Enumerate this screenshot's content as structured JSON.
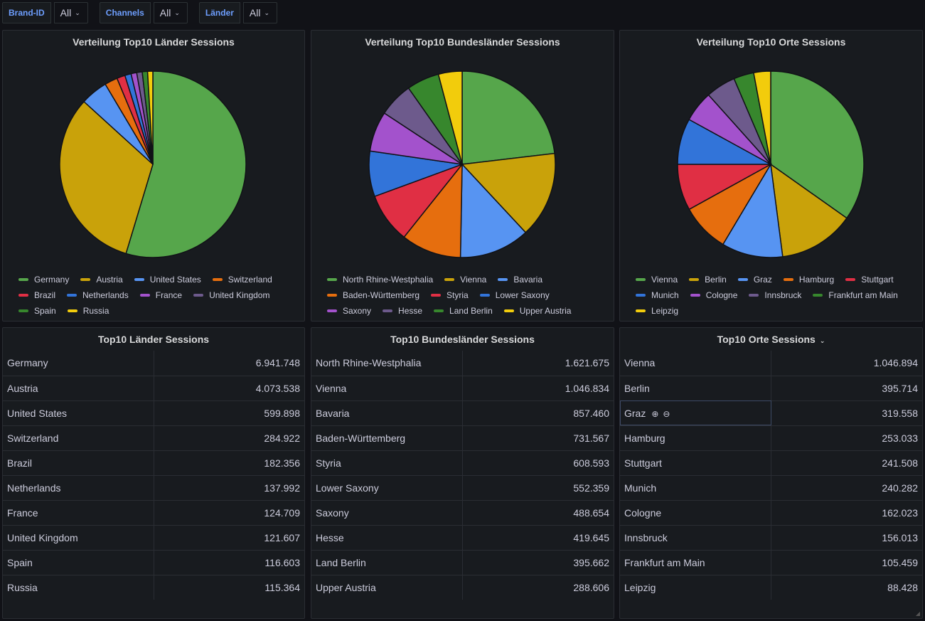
{
  "variables": [
    {
      "label": "Brand-ID",
      "value": "All"
    },
    {
      "label": "Channels",
      "value": "All"
    },
    {
      "label": "Länder",
      "value": "All"
    }
  ],
  "panels": {
    "pie1_title": "Verteilung Top10 Länder Sessions",
    "pie2_title": "Verteilung Top10 Bundesländer Sessions",
    "pie3_title": "Verteilung Top10 Orte Sessions",
    "table1_title": "Top10 Länder Sessions",
    "table2_title": "Top10 Bundesländer Sessions",
    "table3_title": "Top10 Orte Sessions"
  },
  "palette": [
    "#56a64b",
    "#c9a20a",
    "#5794f2",
    "#e66e0e",
    "#e02f44",
    "#3274d9",
    "#a352cc",
    "#6d5a8c",
    "#37872d",
    "#f2cc0c"
  ],
  "chart_data": [
    {
      "type": "pie",
      "title": "Verteilung Top10 Länder Sessions",
      "labels": [
        "Germany",
        "Austria",
        "United States",
        "Switzerland",
        "Brazil",
        "Netherlands",
        "France",
        "United Kingdom",
        "Spain",
        "Russia"
      ],
      "values": [
        6941748,
        4073538,
        599898,
        284922,
        182356,
        137992,
        124709,
        121607,
        116603,
        115364
      ],
      "legend_position": "bottom"
    },
    {
      "type": "pie",
      "title": "Verteilung Top10 Bundesländer Sessions",
      "labels": [
        "North Rhine-Westphalia",
        "Vienna",
        "Bavaria",
        "Baden-Württemberg",
        "Styria",
        "Lower Saxony",
        "Saxony",
        "Hesse",
        "Land Berlin",
        "Upper Austria"
      ],
      "values": [
        1621675,
        1046834,
        857460,
        731567,
        608593,
        552359,
        488654,
        419645,
        395662,
        288606
      ],
      "legend_position": "bottom"
    },
    {
      "type": "pie",
      "title": "Verteilung Top10 Orte Sessions",
      "labels": [
        "Vienna",
        "Berlin",
        "Graz",
        "Hamburg",
        "Stuttgart",
        "Munich",
        "Cologne",
        "Innsbruck",
        "Frankfurt am Main",
        "Leipzig"
      ],
      "values": [
        1046894,
        395714,
        319558,
        253033,
        241508,
        240282,
        162023,
        156013,
        105459,
        88428
      ],
      "legend_position": "bottom"
    }
  ],
  "tables": [
    {
      "rows": [
        {
          "name": "Germany",
          "value": "6.941.748"
        },
        {
          "name": "Austria",
          "value": "4.073.538"
        },
        {
          "name": "United States",
          "value": "599.898"
        },
        {
          "name": "Switzerland",
          "value": "284.922"
        },
        {
          "name": "Brazil",
          "value": "182.356"
        },
        {
          "name": "Netherlands",
          "value": "137.992"
        },
        {
          "name": "France",
          "value": "124.709"
        },
        {
          "name": "United Kingdom",
          "value": "121.607"
        },
        {
          "name": "Spain",
          "value": "116.603"
        },
        {
          "name": "Russia",
          "value": "115.364"
        }
      ]
    },
    {
      "rows": [
        {
          "name": "North Rhine-Westphalia",
          "value": "1.621.675"
        },
        {
          "name": "Vienna",
          "value": "1.046.834"
        },
        {
          "name": "Bavaria",
          "value": "857.460"
        },
        {
          "name": "Baden-Württemberg",
          "value": "731.567"
        },
        {
          "name": "Styria",
          "value": "608.593"
        },
        {
          "name": "Lower Saxony",
          "value": "552.359"
        },
        {
          "name": "Saxony",
          "value": "488.654"
        },
        {
          "name": "Hesse",
          "value": "419.645"
        },
        {
          "name": "Land Berlin",
          "value": "395.662"
        },
        {
          "name": "Upper Austria",
          "value": "288.606"
        }
      ]
    },
    {
      "rows": [
        {
          "name": "Vienna",
          "value": "1.046.894"
        },
        {
          "name": "Berlin",
          "value": "395.714"
        },
        {
          "name": "Graz",
          "value": "319.558"
        },
        {
          "name": "Hamburg",
          "value": "253.033"
        },
        {
          "name": "Stuttgart",
          "value": "241.508"
        },
        {
          "name": "Munich",
          "value": "240.282"
        },
        {
          "name": "Cologne",
          "value": "162.023"
        },
        {
          "name": "Innsbruck",
          "value": "156.013"
        },
        {
          "name": "Frankfurt am Main",
          "value": "105.459"
        },
        {
          "name": "Leipzig",
          "value": "88.428"
        }
      ]
    }
  ]
}
